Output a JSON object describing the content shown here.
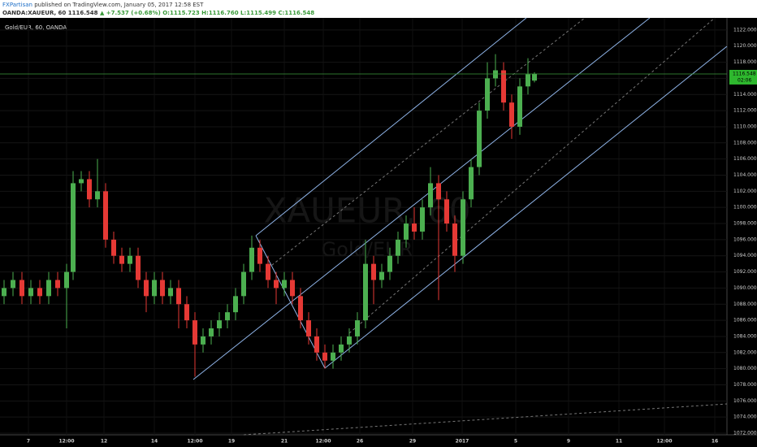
{
  "header": {
    "publisher": "FXPartisan",
    "published_text": "published on TradingView.com, January 05, 2017 12:58 EST",
    "symbol": "OANDA:XAUEUR, 60",
    "last": "1116.548",
    "change": "▲ +7.537 (+0.68%)",
    "open": "O:1115.723",
    "high": "H:1116.760",
    "low": "L:1115.499",
    "close": "C:1116.548"
  },
  "chart_data": {
    "type": "candlestick",
    "title": "Gold/EUR, 60, OANDA",
    "watermark": "XAUEUR, 60",
    "watermark_subtitle": "Gold/EUR",
    "up_color": "#4caf50",
    "down_color": "#e53935",
    "current_price": 1116.548,
    "countdown": "02:06",
    "xlim": [
      0,
      895
    ],
    "ylim": [
      1071.8,
      1123.5
    ],
    "xticks": [
      {
        "value": 35,
        "label": "7"
      },
      {
        "value": 82,
        "label": "12:00"
      },
      {
        "value": 128,
        "label": "12"
      },
      {
        "value": 190,
        "label": "14"
      },
      {
        "value": 240,
        "label": "12:00"
      },
      {
        "value": 285,
        "label": "19"
      },
      {
        "value": 350,
        "label": "21"
      },
      {
        "value": 398,
        "label": "12:00"
      },
      {
        "value": 443,
        "label": "26"
      },
      {
        "value": 508,
        "label": "29"
      },
      {
        "value": 569,
        "label": "2017"
      },
      {
        "value": 635,
        "label": "5"
      },
      {
        "value": 700,
        "label": "9"
      },
      {
        "value": 762,
        "label": "11"
      },
      {
        "value": 818,
        "label": "12:00"
      },
      {
        "value": 880,
        "label": "16"
      }
    ],
    "yticks": [
      {
        "value": 1072,
        "label": "1072.000"
      },
      {
        "value": 1074,
        "label": "1074.000"
      },
      {
        "value": 1076,
        "label": "1076.000"
      },
      {
        "value": 1078,
        "label": "1078.000"
      },
      {
        "value": 1080,
        "label": "1080.000"
      },
      {
        "value": 1082,
        "label": "1082.000"
      },
      {
        "value": 1084,
        "label": "1084.000"
      },
      {
        "value": 1086,
        "label": "1086.000"
      },
      {
        "value": 1088,
        "label": "1088.000"
      },
      {
        "value": 1090,
        "label": "1090.000"
      },
      {
        "value": 1092,
        "label": "1092.000"
      },
      {
        "value": 1094,
        "label": "1094.000"
      },
      {
        "value": 1096,
        "label": "1096.000"
      },
      {
        "value": 1098,
        "label": "1098.000"
      },
      {
        "value": 1100,
        "label": "1100.000"
      },
      {
        "value": 1102,
        "label": "1102.000"
      },
      {
        "value": 1104,
        "label": "1104.000"
      },
      {
        "value": 1106,
        "label": "1106.000"
      },
      {
        "value": 1108,
        "label": "1108.000"
      },
      {
        "value": 1110,
        "label": "1110.000"
      },
      {
        "value": 1112,
        "label": "1112.000"
      },
      {
        "value": 1114,
        "label": "1114.000"
      },
      {
        "value": 1116,
        "label": "1116.000"
      },
      {
        "value": 1118,
        "label": "1118.000"
      },
      {
        "value": 1120,
        "label": "1120.000"
      },
      {
        "value": 1122,
        "label": "1122.000"
      }
    ],
    "candles": [
      {
        "x": 5,
        "o": 1089,
        "h": 1091,
        "l": 1088,
        "c": 1090
      },
      {
        "x": 16,
        "o": 1090,
        "h": 1092,
        "l": 1089,
        "c": 1091
      },
      {
        "x": 27,
        "o": 1091,
        "h": 1092,
        "l": 1088,
        "c": 1089
      },
      {
        "x": 38,
        "o": 1089,
        "h": 1091,
        "l": 1088,
        "c": 1090
      },
      {
        "x": 49,
        "o": 1090,
        "h": 1091,
        "l": 1088,
        "c": 1089
      },
      {
        "x": 60,
        "o": 1089,
        "h": 1092,
        "l": 1088,
        "c": 1091
      },
      {
        "x": 71,
        "o": 1091,
        "h": 1092,
        "l": 1089,
        "c": 1090
      },
      {
        "x": 82,
        "o": 1090,
        "h": 1093,
        "l": 1085,
        "c": 1092
      },
      {
        "x": 90,
        "o": 1092,
        "h": 1104.5,
        "l": 1091,
        "c": 1103
      },
      {
        "x": 100,
        "o": 1103,
        "h": 1104.5,
        "l": 1102,
        "c": 1103.5
      },
      {
        "x": 110,
        "o": 1103.5,
        "h": 1104.5,
        "l": 1100,
        "c": 1101
      },
      {
        "x": 120,
        "o": 1101,
        "h": 1106,
        "l": 1100,
        "c": 1102
      },
      {
        "x": 130,
        "o": 1102,
        "h": 1103,
        "l": 1095,
        "c": 1096
      },
      {
        "x": 140,
        "o": 1096,
        "h": 1097,
        "l": 1093,
        "c": 1094
      },
      {
        "x": 150,
        "o": 1094,
        "h": 1095,
        "l": 1092,
        "c": 1093
      },
      {
        "x": 160,
        "o": 1093,
        "h": 1095,
        "l": 1092,
        "c": 1094
      },
      {
        "x": 170,
        "o": 1094,
        "h": 1095,
        "l": 1090,
        "c": 1091
      },
      {
        "x": 180,
        "o": 1091,
        "h": 1092,
        "l": 1087,
        "c": 1089
      },
      {
        "x": 190,
        "o": 1089,
        "h": 1092,
        "l": 1088,
        "c": 1091
      },
      {
        "x": 200,
        "o": 1091,
        "h": 1092,
        "l": 1088,
        "c": 1089
      },
      {
        "x": 210,
        "o": 1089,
        "h": 1091,
        "l": 1088,
        "c": 1090
      },
      {
        "x": 220,
        "o": 1090,
        "h": 1091,
        "l": 1085,
        "c": 1088
      },
      {
        "x": 230,
        "o": 1088,
        "h": 1089,
        "l": 1085,
        "c": 1086
      },
      {
        "x": 240,
        "o": 1086,
        "h": 1087,
        "l": 1079,
        "c": 1083
      },
      {
        "x": 250,
        "o": 1083,
        "h": 1085,
        "l": 1082,
        "c": 1084
      },
      {
        "x": 260,
        "o": 1084,
        "h": 1086,
        "l": 1083,
        "c": 1085
      },
      {
        "x": 270,
        "o": 1085,
        "h": 1087,
        "l": 1084,
        "c": 1086
      },
      {
        "x": 280,
        "o": 1086,
        "h": 1088,
        "l": 1085,
        "c": 1087
      },
      {
        "x": 290,
        "o": 1087,
        "h": 1090,
        "l": 1086,
        "c": 1089
      },
      {
        "x": 300,
        "o": 1089,
        "h": 1093,
        "l": 1088,
        "c": 1092
      },
      {
        "x": 310,
        "o": 1092,
        "h": 1096.5,
        "l": 1091,
        "c": 1095
      },
      {
        "x": 320,
        "o": 1095,
        "h": 1096,
        "l": 1092,
        "c": 1093
      },
      {
        "x": 330,
        "o": 1093,
        "h": 1094,
        "l": 1090,
        "c": 1091
      },
      {
        "x": 340,
        "o": 1091,
        "h": 1092,
        "l": 1088,
        "c": 1090
      },
      {
        "x": 350,
        "o": 1090,
        "h": 1092,
        "l": 1089,
        "c": 1091
      },
      {
        "x": 360,
        "o": 1091,
        "h": 1092,
        "l": 1088,
        "c": 1089
      },
      {
        "x": 370,
        "o": 1089,
        "h": 1090,
        "l": 1085,
        "c": 1086
      },
      {
        "x": 380,
        "o": 1086,
        "h": 1087,
        "l": 1083,
        "c": 1084
      },
      {
        "x": 390,
        "o": 1084,
        "h": 1085,
        "l": 1081,
        "c": 1082
      },
      {
        "x": 400,
        "o": 1082,
        "h": 1083,
        "l": 1080,
        "c": 1081
      },
      {
        "x": 410,
        "o": 1081,
        "h": 1083,
        "l": 1080,
        "c": 1082
      },
      {
        "x": 420,
        "o": 1082,
        "h": 1084,
        "l": 1081,
        "c": 1083
      },
      {
        "x": 430,
        "o": 1083,
        "h": 1085,
        "l": 1082,
        "c": 1084
      },
      {
        "x": 440,
        "o": 1084,
        "h": 1087,
        "l": 1083,
        "c": 1086
      },
      {
        "x": 450,
        "o": 1086,
        "h": 1096,
        "l": 1085,
        "c": 1093
      },
      {
        "x": 460,
        "o": 1093,
        "h": 1094,
        "l": 1088,
        "c": 1091
      },
      {
        "x": 470,
        "o": 1091,
        "h": 1093,
        "l": 1090,
        "c": 1092
      },
      {
        "x": 480,
        "o": 1092,
        "h": 1095,
        "l": 1091,
        "c": 1094
      },
      {
        "x": 490,
        "o": 1094,
        "h": 1097,
        "l": 1093,
        "c": 1096
      },
      {
        "x": 500,
        "o": 1096,
        "h": 1099,
        "l": 1095,
        "c": 1098
      },
      {
        "x": 510,
        "o": 1098,
        "h": 1100,
        "l": 1096,
        "c": 1097
      },
      {
        "x": 520,
        "o": 1097,
        "h": 1101,
        "l": 1096,
        "c": 1100
      },
      {
        "x": 530,
        "o": 1100,
        "h": 1105,
        "l": 1099,
        "c": 1103
      },
      {
        "x": 540,
        "o": 1103,
        "h": 1104,
        "l": 1088.5,
        "c": 1101
      },
      {
        "x": 550,
        "o": 1101,
        "h": 1102,
        "l": 1097,
        "c": 1098
      },
      {
        "x": 560,
        "o": 1098,
        "h": 1099,
        "l": 1092,
        "c": 1094
      },
      {
        "x": 570,
        "o": 1094,
        "h": 1102,
        "l": 1093,
        "c": 1101
      },
      {
        "x": 580,
        "o": 1101,
        "h": 1106,
        "l": 1100,
        "c": 1105
      },
      {
        "x": 590,
        "o": 1105,
        "h": 1113,
        "l": 1104,
        "c": 1112
      },
      {
        "x": 600,
        "o": 1112,
        "h": 1118,
        "l": 1111,
        "c": 1116
      },
      {
        "x": 610,
        "o": 1116,
        "h": 1119,
        "l": 1115,
        "c": 1117
      },
      {
        "x": 620,
        "o": 1117,
        "h": 1118,
        "l": 1112,
        "c": 1113
      },
      {
        "x": 630,
        "o": 1113,
        "h": 1114,
        "l": 1108.5,
        "c": 1110
      },
      {
        "x": 640,
        "o": 1110,
        "h": 1116,
        "l": 1109,
        "c": 1115
      },
      {
        "x": 650,
        "o": 1115,
        "h": 1118.5,
        "l": 1114,
        "c": 1116.5
      },
      {
        "x": 658,
        "o": 1115.723,
        "h": 1116.76,
        "l": 1115.499,
        "c": 1116.548
      }
    ]
  }
}
